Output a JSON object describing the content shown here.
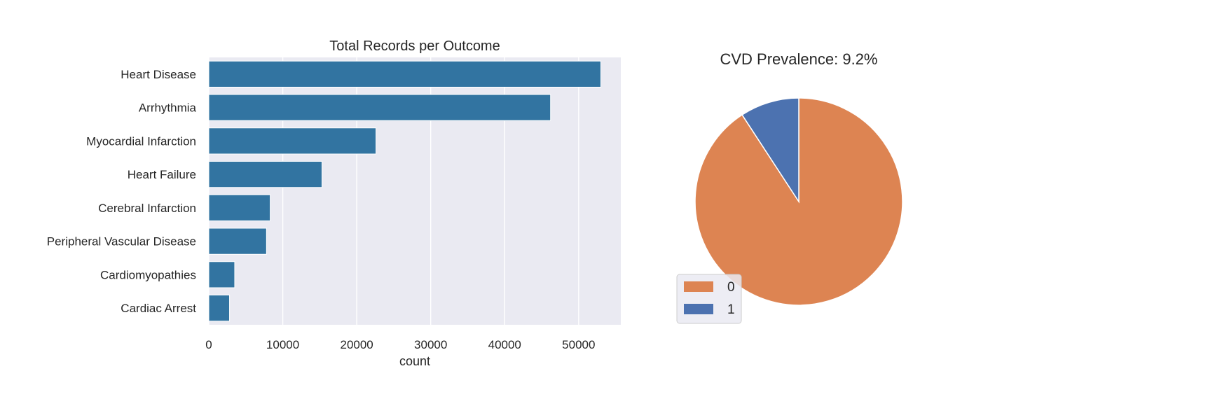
{
  "chart_data": [
    {
      "type": "bar",
      "orientation": "horizontal",
      "title": "Total Records per Outcome",
      "xlabel": "count",
      "ylabel": "",
      "categories": [
        "Heart Disease",
        "Arrhythmia",
        "Myocardial Infarction",
        "Heart Failure",
        "Cerebral Infarction",
        "Peripheral Vascular Disease",
        "Cardiomyopathies",
        "Cardiac Arrest"
      ],
      "values": [
        53000,
        46200,
        22600,
        15300,
        8300,
        7800,
        3500,
        2800
      ],
      "xlim": [
        0,
        55700
      ],
      "xticks": [
        0,
        10000,
        20000,
        30000,
        40000,
        50000
      ],
      "xtick_labels": [
        "0",
        "10000",
        "20000",
        "30000",
        "40000",
        "50000"
      ],
      "grid": true,
      "bar_color": "#3274a1",
      "background": "#eaeaf2"
    },
    {
      "type": "pie",
      "title": "CVD Prevalence: 9.2%",
      "labels": [
        "0",
        "1"
      ],
      "values": [
        90.8,
        9.2
      ],
      "colors": [
        "#dd8452",
        "#4c72b0"
      ],
      "start_angle": 90,
      "direction": "clockwise",
      "legend": {
        "position": "lower-left",
        "entries": [
          "0",
          "1"
        ]
      }
    }
  ]
}
